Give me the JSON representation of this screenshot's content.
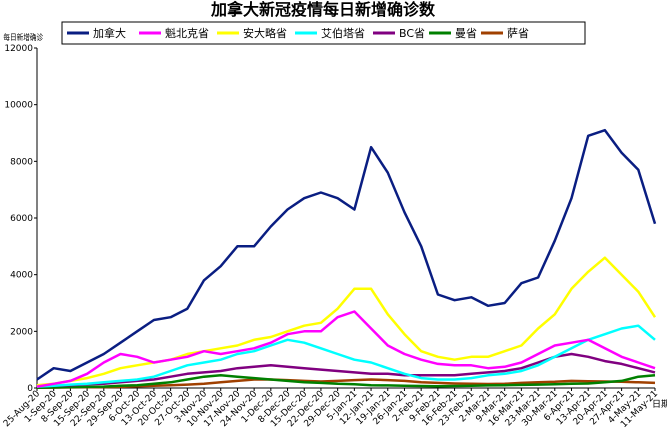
{
  "chart_data": {
    "type": "line",
    "title": "加拿大新冠疫情每日新增确诊数",
    "ylabel": "每日新增确诊",
    "xlabel": "日期",
    "ylim": [
      0,
      12000
    ],
    "yticks": [
      0,
      2000,
      4000,
      6000,
      8000,
      10000,
      12000
    ],
    "grid": false,
    "legend_position": "top",
    "x_tick_labels": [
      "25-Aug-20",
      "1-Sep-20",
      "8-Sep-20",
      "15-Sep-20",
      "22-Sep-20",
      "29-Sep-20",
      "6-Oct-20",
      "13-Oct-20",
      "20-Oct-20",
      "27-Oct-20",
      "3-Nov-20",
      "10-Nov-20",
      "17-Nov-20",
      "24-Nov-20",
      "1-Dec-20",
      "8-Dec-20",
      "15-Dec-20",
      "22-Dec-20",
      "29-Dec-20",
      "5-Jan-21",
      "12-Jan-21",
      "19-Jan-21",
      "26-Jan-21",
      "2-Feb-21",
      "9-Feb-21",
      "16-Feb-21",
      "23-Feb-21",
      "2-Mar-21",
      "9-Mar-21",
      "16-Mar-21",
      "23-Mar-21",
      "30-Mar-21",
      "6-Apr-21",
      "13-Apr-21",
      "20-Apr-21",
      "27-Apr-21",
      "4-May-21",
      "11-May-21"
    ],
    "series": [
      {
        "name": "加拿大",
        "color": "#0a1e82",
        "values": [
          300,
          700,
          600,
          900,
          1200,
          1600,
          2000,
          2400,
          2500,
          2800,
          3800,
          4300,
          5000,
          5000,
          5700,
          6300,
          6700,
          6900,
          6700,
          6300,
          8500,
          7600,
          6200,
          5000,
          3300,
          3100,
          3200,
          2900,
          3000,
          3700,
          3900,
          5200,
          6700,
          8900,
          9100,
          8300,
          7700,
          5800
        ]
      },
      {
        "name": "魁北克省",
        "color": "#ff00ff",
        "values": [
          50,
          150,
          250,
          500,
          900,
          1200,
          1100,
          900,
          1000,
          1100,
          1300,
          1200,
          1300,
          1400,
          1600,
          1900,
          2000,
          2000,
          2500,
          2700,
          2100,
          1500,
          1200,
          1000,
          850,
          800,
          800,
          700,
          750,
          900,
          1200,
          1500,
          1600,
          1700,
          1400,
          1100,
          900,
          700
        ]
      },
      {
        "name": "安大略省",
        "color": "#ffff00",
        "values": [
          100,
          150,
          250,
          350,
          500,
          700,
          800,
          900,
          1000,
          1200,
          1300,
          1400,
          1500,
          1700,
          1800,
          2000,
          2200,
          2300,
          2800,
          3500,
          3500,
          2600,
          1900,
          1300,
          1100,
          1000,
          1100,
          1100,
          1300,
          1500,
          2100,
          2600,
          3500,
          4100,
          4600,
          4000,
          3400,
          2500
        ]
      },
      {
        "name": "艾伯塔省",
        "color": "#00ffff",
        "values": [
          50,
          80,
          120,
          150,
          200,
          250,
          300,
          400,
          600,
          800,
          900,
          1000,
          1200,
          1300,
          1500,
          1700,
          1600,
          1400,
          1200,
          1000,
          900,
          700,
          500,
          350,
          300,
          300,
          350,
          450,
          500,
          600,
          800,
          1100,
          1400,
          1700,
          1900,
          2100,
          2200,
          1700
        ]
      },
      {
        "name": "BC省",
        "color": "#800080",
        "values": [
          50,
          80,
          100,
          130,
          150,
          200,
          250,
          300,
          400,
          500,
          550,
          600,
          700,
          750,
          800,
          750,
          700,
          650,
          600,
          550,
          500,
          500,
          450,
          450,
          450,
          450,
          500,
          550,
          600,
          700,
          900,
          1100,
          1200,
          1100,
          950,
          850,
          700,
          550
        ]
      },
      {
        "name": "曼省",
        "color": "#008000",
        "values": [
          10,
          20,
          30,
          40,
          50,
          80,
          100,
          150,
          200,
          300,
          400,
          450,
          400,
          350,
          300,
          250,
          200,
          180,
          150,
          130,
          100,
          90,
          80,
          70,
          60,
          70,
          80,
          90,
          100,
          110,
          120,
          130,
          150,
          160,
          200,
          250,
          400,
          450
        ]
      },
      {
        "name": "萨省",
        "color": "#a04000",
        "values": [
          10,
          15,
          20,
          25,
          30,
          40,
          60,
          80,
          100,
          120,
          150,
          200,
          250,
          300,
          300,
          280,
          250,
          230,
          250,
          280,
          300,
          280,
          250,
          200,
          180,
          160,
          150,
          140,
          150,
          180,
          200,
          220,
          250,
          240,
          230,
          220,
          200,
          180
        ]
      }
    ]
  }
}
